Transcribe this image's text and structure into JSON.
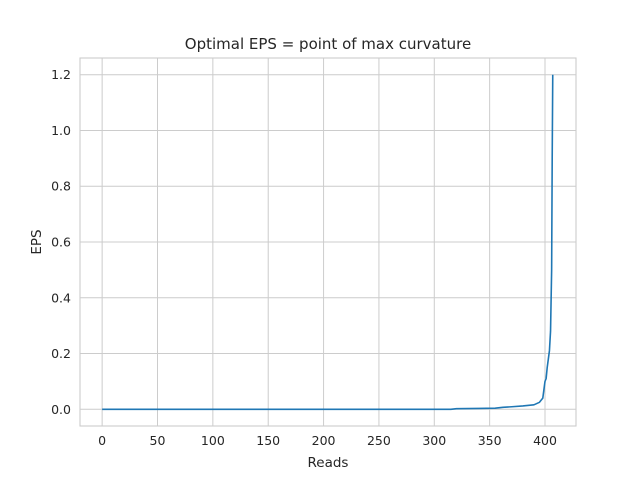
{
  "colors": {
    "series": "#1f77b4",
    "grid": "#cccccc",
    "text": "#262626",
    "background": "#ffffff"
  },
  "chart_data": {
    "type": "line",
    "title": "Optimal EPS = point of max curvature",
    "xlabel": "Reads",
    "ylabel": "EPS",
    "xlim": [
      -20,
      428
    ],
    "ylim": [
      -0.06,
      1.26
    ],
    "xticks": [
      0,
      50,
      100,
      150,
      200,
      250,
      300,
      350,
      400
    ],
    "xtick_labels": [
      "0",
      "50",
      "100",
      "150",
      "200",
      "250",
      "300",
      "350",
      "400"
    ],
    "yticks": [
      0.0,
      0.2,
      0.4,
      0.6,
      0.8,
      1.0,
      1.2
    ],
    "ytick_labels": [
      "0.0",
      "0.2",
      "0.4",
      "0.6",
      "0.8",
      "1.0",
      "1.2"
    ],
    "grid": true,
    "series": [
      {
        "x": [
          0,
          100,
          200,
          300,
          315,
          320,
          340,
          355,
          362,
          370,
          380,
          390,
          395,
          398,
          400,
          401,
          402,
          403,
          404,
          405,
          406,
          406.5,
          407
        ],
        "values": [
          0.0,
          0.0,
          0.0,
          0.0,
          0.0,
          0.002,
          0.003,
          0.004,
          0.007,
          0.009,
          0.012,
          0.016,
          0.025,
          0.04,
          0.1,
          0.11,
          0.15,
          0.18,
          0.21,
          0.28,
          0.5,
          0.9,
          1.2
        ]
      }
    ]
  }
}
